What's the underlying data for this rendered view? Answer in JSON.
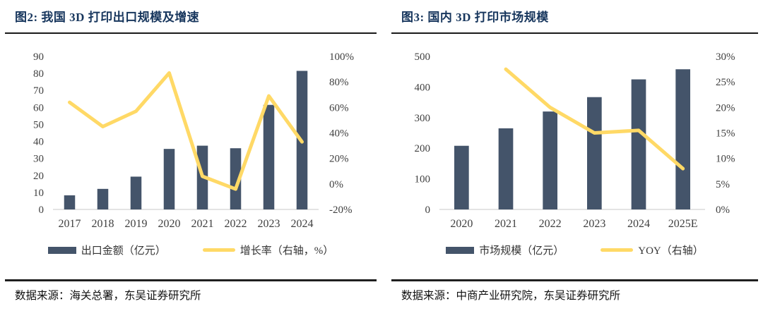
{
  "panels": [
    {
      "source": "数据来源：海关总署，东吴证券研究所"
    },
    {
      "source": "数据来源：中商产业研究院，东吴证券研究所"
    }
  ],
  "colors": {
    "bar": "#44546A",
    "line": "#FFD966",
    "title": "#17365D",
    "axis_line": "#c9c9c9"
  },
  "chart_data": [
    {
      "type": "bar",
      "title": "图2:  我国 3D 打印出口规模及增速",
      "categories": [
        "2017",
        "2018",
        "2019",
        "2020",
        "2021",
        "2022",
        "2023",
        "2024"
      ],
      "series": [
        {
          "name": "出口金额（亿元）",
          "type": "bar",
          "axis": "left",
          "values": [
            8.3,
            12.1,
            19.3,
            35.6,
            37.5,
            36,
            61.5,
            81.5
          ],
          "color": "#44546A"
        },
        {
          "name": "增长率（右轴，%）",
          "type": "line",
          "axis": "right",
          "values": [
            64,
            45,
            57,
            87,
            6,
            -4,
            69,
            33
          ],
          "color": "#FFD966"
        }
      ],
      "xlabel": "",
      "ylabel": "",
      "y_axis": {
        "min": 0,
        "max": 90,
        "ticks": [
          "0",
          "10",
          "20",
          "30",
          "40",
          "50",
          "60",
          "70",
          "80",
          "90"
        ]
      },
      "y2_axis": {
        "min": -20,
        "max": 100,
        "ticks": [
          "-20%",
          "0%",
          "20%",
          "40%",
          "60%",
          "80%",
          "100%"
        ]
      },
      "grid": false,
      "legend_position": "bottom"
    },
    {
      "type": "bar",
      "title": "图3:  国内 3D 打印市场规模",
      "categories": [
        "2020",
        "2021",
        "2022",
        "2023",
        "2024",
        "2025E"
      ],
      "series": [
        {
          "name": "市场规模（亿元）",
          "type": "bar",
          "axis": "left",
          "values": [
            208,
            265,
            320,
            367,
            425,
            458
          ],
          "color": "#44546A"
        },
        {
          "name": "YOY（右轴）",
          "type": "line",
          "axis": "right",
          "values": [
            null,
            27.5,
            20,
            15,
            15.5,
            8
          ],
          "color": "#FFD966"
        }
      ],
      "xlabel": "",
      "ylabel": "",
      "y_axis": {
        "min": 0,
        "max": 500,
        "ticks": [
          "0",
          "100",
          "200",
          "300",
          "400",
          "500"
        ]
      },
      "y2_axis": {
        "min": 0,
        "max": 30,
        "ticks": [
          "0%",
          "5%",
          "10%",
          "15%",
          "20%",
          "25%",
          "30%"
        ]
      },
      "grid": false,
      "legend_position": "bottom"
    }
  ]
}
